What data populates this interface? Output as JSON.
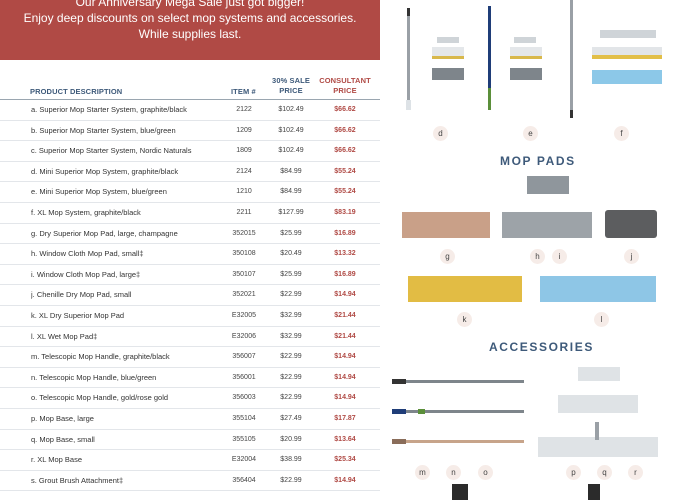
{
  "banner": {
    "line1": "Our Anniversary Mega Sale just got bigger!",
    "line2": "Enjoy deep discounts on select mop systems and accessories.",
    "line3": "While supplies last."
  },
  "table": {
    "headers": {
      "description": "PRODUCT DESCRIPTION",
      "item": "ITEM #",
      "price_line1": "30% SALE",
      "price_line2": "PRICE",
      "consultant_line1": "CONSULTANT",
      "consultant_line2": "PRICE"
    },
    "rows": [
      {
        "desc": "a.  Superior Mop Starter System, graphite/black",
        "item": "2122",
        "price": "$102.49",
        "consultant": "$66.62"
      },
      {
        "desc": "b.  Superior Mop Starter System, blue/green",
        "item": "1209",
        "price": "$102.49",
        "consultant": "$66.62"
      },
      {
        "desc": "c.  Superior Mop Starter System, Nordic Naturals",
        "item": "1809",
        "price": "$102.49",
        "consultant": "$66.62"
      },
      {
        "desc": "d.  Mini Superior Mop System, graphite/black",
        "item": "2124",
        "price": "$84.99",
        "consultant": "$55.24"
      },
      {
        "desc": "e.  Mini Superior Mop System, blue/green",
        "item": "1210",
        "price": "$84.99",
        "consultant": "$55.24"
      },
      {
        "desc": "f.  XL Mop System, graphite/black",
        "item": "2211",
        "price": "$127.99",
        "consultant": "$83.19"
      },
      {
        "desc": "g.  Dry Superior Mop Pad, large, champagne",
        "item": "352015",
        "price": "$25.99",
        "consultant": "$16.89"
      },
      {
        "desc": "h.  Window Cloth Mop Pad, small‡",
        "item": "350108",
        "price": "$20.49",
        "consultant": "$13.32"
      },
      {
        "desc": "i.  Window Cloth Mop Pad, large‡",
        "item": "350107",
        "price": "$25.99",
        "consultant": "$16.89"
      },
      {
        "desc": "j.  Chenille Dry Mop Pad, small",
        "item": "352021",
        "price": "$22.99",
        "consultant": "$14.94"
      },
      {
        "desc": "k.  XL Dry Superior Mop Pad",
        "item": "E32005",
        "price": "$32.99",
        "consultant": "$21.44"
      },
      {
        "desc": "l.  XL Wet Mop Pad‡",
        "item": "E32006",
        "price": "$32.99",
        "consultant": "$21.44"
      },
      {
        "desc": "m. Telescopic Mop Handle, graphite/black",
        "item": "356007",
        "price": "$22.99",
        "consultant": "$14.94"
      },
      {
        "desc": "n.  Telescopic Mop Handle, blue/green",
        "item": "356001",
        "price": "$22.99",
        "consultant": "$14.94"
      },
      {
        "desc": "o.  Telescopic Mop Handle, gold/rose gold",
        "item": "356003",
        "price": "$22.99",
        "consultant": "$14.94"
      },
      {
        "desc": "p.  Mop Base, large",
        "item": "355104",
        "price": "$27.49",
        "consultant": "$17.87"
      },
      {
        "desc": "q.  Mop Base, small",
        "item": "355105",
        "price": "$20.99",
        "consultant": "$13.64"
      },
      {
        "desc": "r.  XL Mop Base",
        "item": "E32004",
        "price": "$38.99",
        "consultant": "$25.34"
      },
      {
        "desc": "s.  Grout Brush Attachment‡",
        "item": "356404",
        "price": "$22.99",
        "consultant": "$14.94"
      },
      {
        "desc": "",
        "item": "",
        "price": "",
        "consultant": ""
      }
    ]
  },
  "panel": {
    "mop_pads_title": "MOP PADS",
    "accessories_title": "ACCESSORIES",
    "labels": [
      "d",
      "e",
      "f",
      "g",
      "h",
      "i",
      "j",
      "k",
      "l",
      "m",
      "n",
      "o",
      "p",
      "q",
      "r"
    ]
  }
}
